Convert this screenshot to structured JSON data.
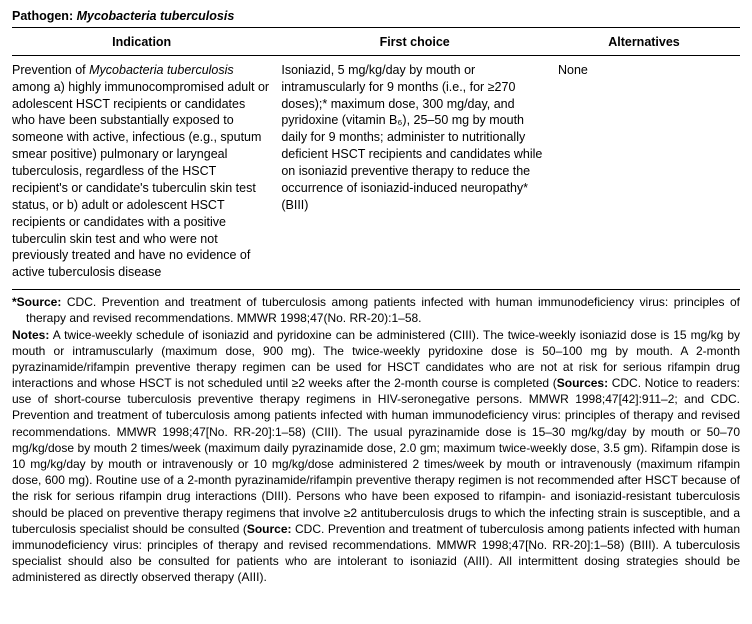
{
  "pathogen": {
    "label": "Pathogen: ",
    "name": "Mycobacteria tuberculosis"
  },
  "headers": {
    "indication": "Indication",
    "first_choice": "First choice",
    "alternatives": "Alternatives"
  },
  "row": {
    "indication_pre": "Prevention of ",
    "indication_italic": "Mycobacteria tuberculosis",
    "indication_post": " among a) highly immunocompromised adult or adolescent HSCT recipients or candidates who have been substantially exposed to someone with active, infectious (e.g., sputum smear positive) pulmonary or laryngeal tuberculosis, regardless of the HSCT recipient's or candidate's tuberculin skin test status, or b) adult or adolescent HSCT recipients or candidates with a positive tuberculin skin test and who were not previously treated and have no evidence of active tuberculosis disease",
    "first_choice": "Isoniazid, 5 mg/kg/day by mouth or intramuscularly for 9 months (i.e., for ≥270 doses);* maximum dose, 300 mg/day, and pyridoxine (vitamin B₆), 25–50 mg by mouth daily for 9 months; administer to nutritionally deficient HSCT recipients and candidates while on isoniazid preventive therapy to reduce the occurrence of isoniazid-induced neuropathy* (BIII)",
    "alternatives": "None"
  },
  "footnotes": {
    "source_star": "*",
    "source_label": "Source:",
    "source_text": " CDC. Prevention and treatment of tuberculosis among patients infected with human immunodeficiency virus: principles of therapy and revised recommendations. MMWR 1998;47(No. RR-20):1–58.",
    "notes_label": "Notes:",
    "notes_text": " A twice-weekly schedule of isoniazid and pyridoxine can be administered (CIII). The twice-weekly isoniazid dose is 15 mg/kg by mouth or intramuscularly (maximum dose, 900 mg). The twice-weekly pyridoxine dose is 50–100 mg by mouth. A 2-month pyrazinamide/rifampin preventive therapy regimen can be used for HSCT candidates who are not at risk for serious rifampin drug interactions and whose HSCT is not scheduled until ≥2 weeks after the 2-month course is completed (",
    "notes_sources_label": "Sources:",
    "notes_text2": " CDC. Notice to readers: use of short-course tuberculosis preventive therapy regimens in HIV-seronegative persons. MMWR 1998;47[42]:911–2; and CDC. Prevention and treatment of tuberculosis among patients infected with human immunodeficiency virus: principles of therapy and revised recommendations. MMWR 1998;47[No. RR-20]:1–58) (CIII). The usual pyrazinamide dose is 15–30 mg/kg/day by mouth or 50–70 mg/kg/dose by mouth 2 times/week (maximum daily pyrazinamide dose, 2.0 gm; maximum twice-weekly dose, 3.5 gm). Rifampin dose is 10 mg/kg/day by mouth or intravenously or 10 mg/kg/dose administered 2 times/week by mouth or intravenously (maximum rifampin dose, 600 mg). Routine use of a 2-month pyrazinamide/rifampin preventive therapy regimen is not recommended after HSCT because of the risk for serious rifampin drug interactions (DIII). Persons who have been exposed to rifampin- and isoniazid-resistant tuberculosis should be placed on preventive therapy regimens that involve ≥2 antituberculosis drugs to which the infecting strain is susceptible, and a tuberculosis specialist should be consulted (",
    "notes_source2_label": "Source:",
    "notes_text3": " CDC. Prevention and treatment of tuberculosis among patients infected with human immunodeficiency virus: principles of therapy and revised recommendations. MMWR 1998;47[No. RR-20]:1–58) (BIII). A tuberculosis specialist should also be consulted for patients who are intolerant to isoniazid (AIII). All intermittent dosing strategies should be administered as directly observed therapy (AIII)."
  }
}
